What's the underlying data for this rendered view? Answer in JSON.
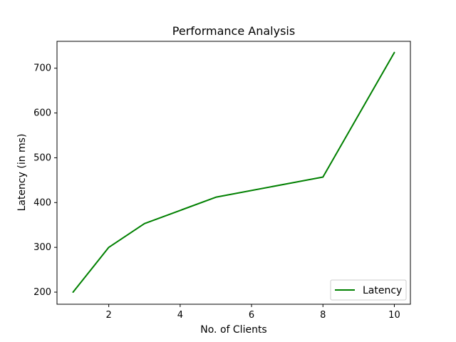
{
  "chart_data": {
    "type": "line",
    "title": "Performance Analysis",
    "xlabel": "No. of Clients",
    "ylabel": "Latency (in ms)",
    "xlim": [
      0.55,
      10.45
    ],
    "ylim": [
      173,
      760
    ],
    "xticks": [
      2,
      4,
      6,
      8,
      10
    ],
    "yticks": [
      200,
      300,
      400,
      500,
      600,
      700
    ],
    "grid": false,
    "legend_position": "lower-right",
    "series": [
      {
        "name": "Latency",
        "color": "#008000",
        "x": [
          1,
          2,
          3,
          5,
          8,
          10
        ],
        "y": [
          200,
          300,
          353,
          412,
          457,
          735
        ]
      }
    ]
  }
}
